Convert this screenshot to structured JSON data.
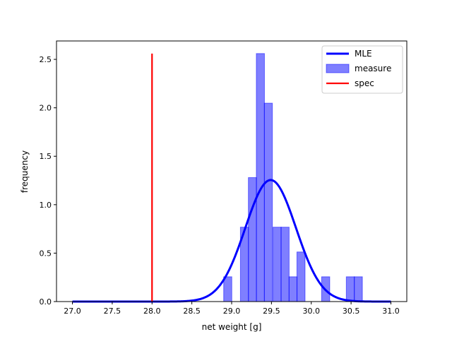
{
  "chart_data": {
    "type": "bar",
    "title": "",
    "xlabel": "net weight [g]",
    "ylabel": "frequency",
    "xlim": [
      26.8,
      31.2
    ],
    "ylim": [
      0,
      2.69
    ],
    "xticks": [
      27.0,
      27.5,
      28.0,
      28.5,
      29.0,
      29.5,
      30.0,
      30.5,
      31.0
    ],
    "xtick_labels": [
      "27.0",
      "27.5",
      "28.0",
      "28.5",
      "29.0",
      "29.5",
      "30.0",
      "30.5",
      "31.0"
    ],
    "yticks": [
      0.0,
      0.5,
      1.0,
      1.5,
      2.0,
      2.5
    ],
    "ytick_labels": [
      "0.0",
      "0.5",
      "1.0",
      "1.5",
      "2.0",
      "2.5"
    ],
    "grid": false,
    "legend_position": "top-right",
    "histogram": {
      "name": "measure",
      "color": "#0000ff",
      "bin_width": 0.102,
      "bins": [
        {
          "x0": 28.9,
          "value": 0.256
        },
        {
          "x0": 29.11,
          "value": 0.768
        },
        {
          "x0": 29.21,
          "value": 1.28
        },
        {
          "x0": 29.31,
          "value": 2.56
        },
        {
          "x0": 29.41,
          "value": 2.048
        },
        {
          "x0": 29.52,
          "value": 0.768
        },
        {
          "x0": 29.62,
          "value": 0.768
        },
        {
          "x0": 29.72,
          "value": 0.256
        },
        {
          "x0": 29.82,
          "value": 0.512
        },
        {
          "x0": 30.13,
          "value": 0.256
        },
        {
          "x0": 30.44,
          "value": 0.256
        },
        {
          "x0": 30.54,
          "value": 0.256
        }
      ]
    },
    "fit_curve": {
      "name": "MLE",
      "color": "#0000ff",
      "distribution": "normal",
      "mean": 29.49,
      "std": 0.318,
      "x_range": [
        27.0,
        31.0
      ]
    },
    "spec_line": {
      "name": "spec",
      "color": "#ff0000",
      "x": 28.0,
      "y_range": [
        0,
        2.56
      ]
    },
    "legend": [
      {
        "label": "MLE",
        "kind": "line",
        "color": "#0000ff"
      },
      {
        "label": "measure",
        "kind": "patch",
        "color": "#0000ff"
      },
      {
        "label": "spec",
        "kind": "line",
        "color": "#ff0000"
      }
    ]
  }
}
